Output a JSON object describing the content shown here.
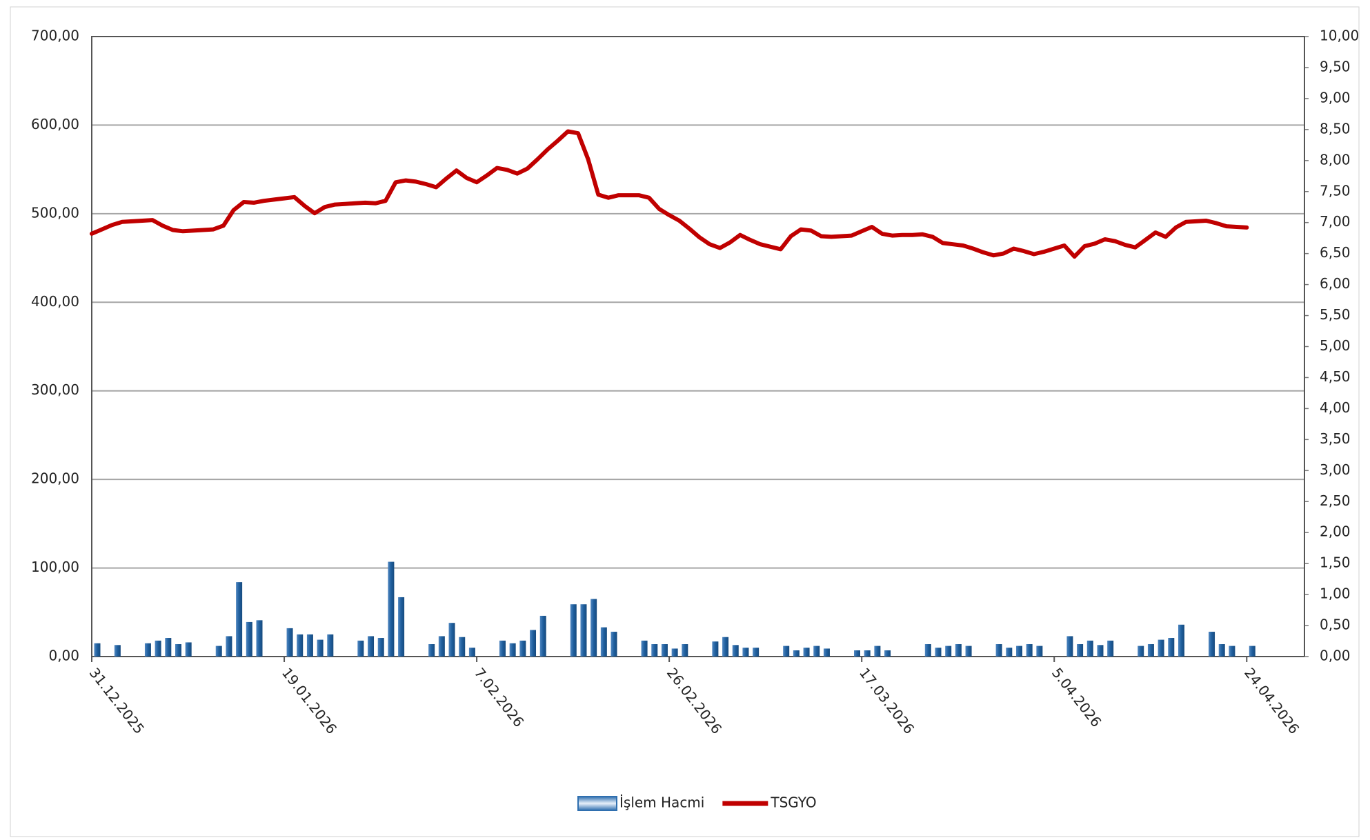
{
  "chart_data": {
    "type": "bar-line",
    "categories": [
      "31.12.2025",
      null,
      null,
      null,
      null,
      null,
      null,
      null,
      null,
      null,
      null,
      null,
      null,
      null,
      null,
      null,
      null,
      null,
      null,
      "19.01.2026",
      null,
      null,
      null,
      null,
      null,
      null,
      null,
      null,
      null,
      null,
      null,
      null,
      null,
      null,
      null,
      null,
      null,
      null,
      "7.02.2026",
      null,
      null,
      null,
      null,
      null,
      null,
      null,
      null,
      null,
      null,
      null,
      null,
      null,
      null,
      null,
      null,
      null,
      null,
      "26.02.2026",
      null,
      null,
      null,
      null,
      null,
      null,
      null,
      null,
      null,
      null,
      null,
      null,
      null,
      null,
      null,
      null,
      null,
      null,
      "17.03.2026",
      null,
      null,
      null,
      null,
      null,
      null,
      null,
      null,
      null,
      null,
      null,
      null,
      null,
      null,
      null,
      null,
      null,
      null,
      "5.04.2026",
      null,
      null,
      null,
      null,
      null,
      null,
      null,
      null,
      null,
      null,
      null,
      null,
      null,
      null,
      null,
      null,
      null,
      null,
      "24.04.2026"
    ],
    "series": [
      {
        "name": "İşlem Hacmi",
        "type": "bar",
        "color": "#1f5f9e",
        "axis": "y",
        "values": [
          15,
          null,
          13,
          null,
          null,
          15,
          18,
          21,
          14,
          16,
          null,
          null,
          12,
          23,
          84,
          39,
          41,
          null,
          null,
          32,
          25,
          25,
          19,
          25,
          null,
          null,
          18,
          23,
          21,
          107,
          67,
          null,
          null,
          14,
          23,
          38,
          22,
          10,
          null,
          null,
          18,
          15,
          18,
          30,
          46,
          null,
          null,
          59,
          59,
          65,
          33,
          28,
          null,
          null,
          18,
          14,
          14,
          9,
          14,
          null,
          null,
          17,
          22,
          13,
          10,
          10,
          null,
          null,
          12,
          7,
          10,
          12,
          9,
          null,
          null,
          7,
          7,
          12,
          7,
          null,
          null,
          null,
          14,
          10,
          12,
          14,
          12,
          null,
          null,
          14,
          10,
          12,
          14,
          12,
          null,
          null,
          23,
          14,
          18,
          13,
          18,
          null,
          null,
          12,
          14,
          19,
          21,
          36,
          null,
          null,
          28,
          14,
          12,
          null,
          12
        ]
      },
      {
        "name": "TSGYO",
        "type": "line",
        "color": "#c00000",
        "axis": "y2",
        "values": [
          6.82,
          6.89,
          6.96,
          7.01,
          7.02,
          7.03,
          7.04,
          6.95,
          6.88,
          6.86,
          6.87,
          6.88,
          6.89,
          6.95,
          7.2,
          7.33,
          7.32,
          7.35,
          7.37,
          7.39,
          7.41,
          7.27,
          7.15,
          7.25,
          7.29,
          7.3,
          7.31,
          7.32,
          7.31,
          7.35,
          7.65,
          7.68,
          7.66,
          7.62,
          7.57,
          7.71,
          7.84,
          7.72,
          7.65,
          7.76,
          7.88,
          7.85,
          7.79,
          7.87,
          8.02,
          8.18,
          8.32,
          8.47,
          8.44,
          8.02,
          7.45,
          7.4,
          7.44,
          7.44,
          7.44,
          7.4,
          7.22,
          7.12,
          7.03,
          6.9,
          6.76,
          6.65,
          6.59,
          6.68,
          6.8,
          6.72,
          6.65,
          6.61,
          6.57,
          6.78,
          6.89,
          6.87,
          6.78,
          6.77,
          6.78,
          6.79,
          6.86,
          6.93,
          6.82,
          6.79,
          6.8,
          6.8,
          6.81,
          6.77,
          6.67,
          6.65,
          6.63,
          6.58,
          6.52,
          6.47,
          6.5,
          6.58,
          6.54,
          6.49,
          6.53,
          6.58,
          6.63,
          6.45,
          6.62,
          6.66,
          6.73,
          6.7,
          6.64,
          6.6,
          6.72,
          6.84,
          6.77,
          6.92,
          7.01,
          7.02,
          7.03,
          6.99,
          6.94,
          6.93,
          6.92
        ]
      }
    ],
    "ylim": [
      0,
      700
    ],
    "yticks": [
      {
        "value": 0,
        "label": "0,00"
      },
      {
        "value": 100,
        "label": "100,00"
      },
      {
        "value": 200,
        "label": "200,00"
      },
      {
        "value": 300,
        "label": "300,00"
      },
      {
        "value": 400,
        "label": "400,00"
      },
      {
        "value": 500,
        "label": "500,00"
      },
      {
        "value": 600,
        "label": "600,00"
      },
      {
        "value": 700,
        "label": "700,00"
      }
    ],
    "y2lim": [
      0,
      10
    ],
    "y2ticks": [
      {
        "value": 0,
        "label": "0,00"
      },
      {
        "value": 0.5,
        "label": "0,50"
      },
      {
        "value": 1,
        "label": "1,00"
      },
      {
        "value": 1.5,
        "label": "1,50"
      },
      {
        "value": 2,
        "label": "2,00"
      },
      {
        "value": 2.5,
        "label": "2,50"
      },
      {
        "value": 3,
        "label": "3,00"
      },
      {
        "value": 3.5,
        "label": "3,50"
      },
      {
        "value": 4,
        "label": "4,00"
      },
      {
        "value": 4.5,
        "label": "4,50"
      },
      {
        "value": 5,
        "label": "5,00"
      },
      {
        "value": 5.5,
        "label": "5,50"
      },
      {
        "value": 6,
        "label": "6,00"
      },
      {
        "value": 6.5,
        "label": "6,50"
      },
      {
        "value": 7,
        "label": "7,00"
      },
      {
        "value": 7.5,
        "label": "7,50"
      },
      {
        "value": 8,
        "label": "8,00"
      },
      {
        "value": 8.5,
        "label": "8,50"
      },
      {
        "value": 9,
        "label": "9,00"
      },
      {
        "value": 9.5,
        "label": "9,50"
      },
      {
        "value": 10,
        "label": "10,00"
      }
    ],
    "grid": true,
    "legend": "bottom"
  }
}
